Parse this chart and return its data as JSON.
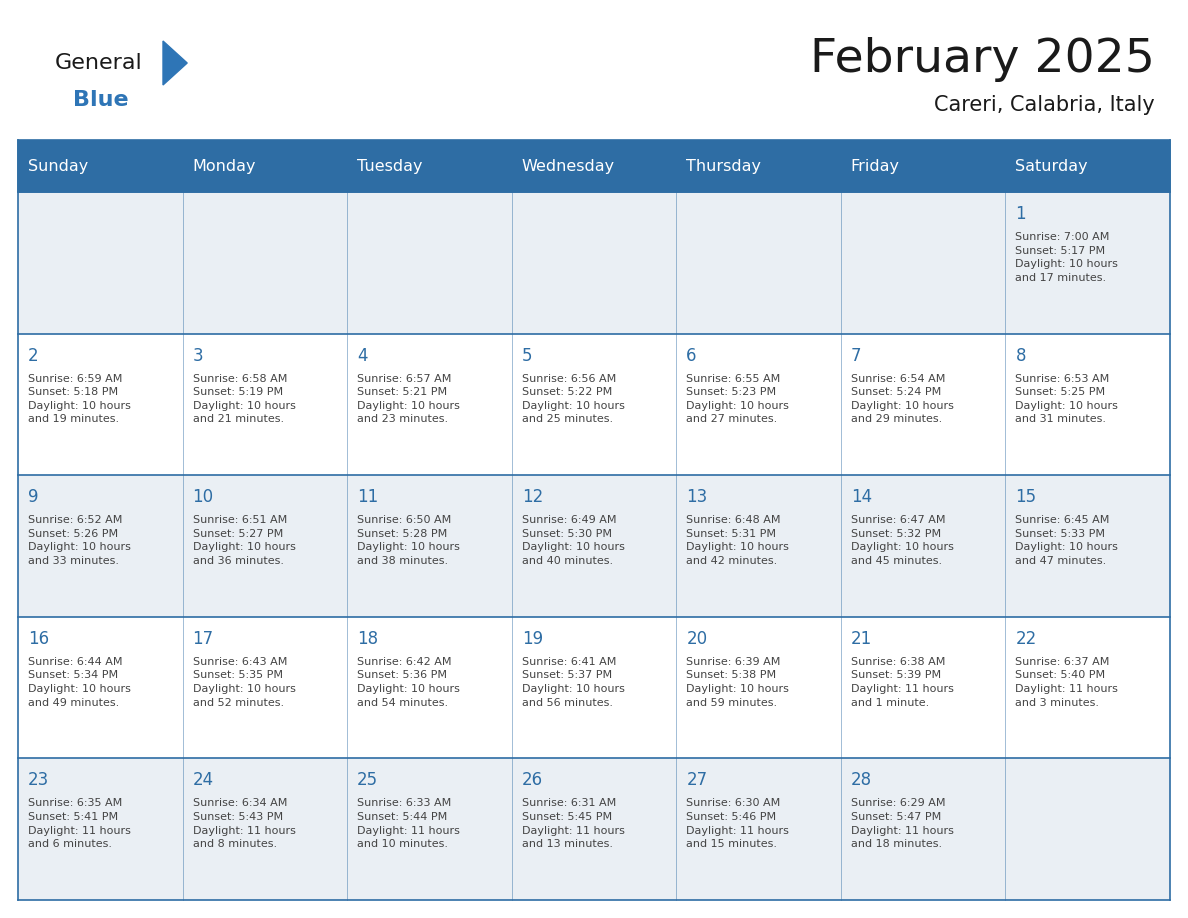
{
  "title": "February 2025",
  "subtitle": "Careri, Calabria, Italy",
  "days_of_week": [
    "Sunday",
    "Monday",
    "Tuesday",
    "Wednesday",
    "Thursday",
    "Friday",
    "Saturday"
  ],
  "header_bg": "#2E6DA4",
  "header_text": "#FFFFFF",
  "cell_bg_odd": "#EAEFF4",
  "cell_bg_even": "#FFFFFF",
  "border_color": "#2E6DA4",
  "day_number_color": "#2E6DA4",
  "cell_text_color": "#444444",
  "logo_color_general": "#1a1a1a",
  "logo_color_blue": "#2E75B6",
  "logo_triangle_color": "#2E75B6",
  "title_color": "#1a1a1a",
  "calendar_data": [
    [
      null,
      null,
      null,
      null,
      null,
      null,
      {
        "day": "1",
        "sunrise": "7:00 AM",
        "sunset": "5:17 PM",
        "daylight": "10 hours\nand 17 minutes."
      }
    ],
    [
      {
        "day": "2",
        "sunrise": "6:59 AM",
        "sunset": "5:18 PM",
        "daylight": "10 hours\nand 19 minutes."
      },
      {
        "day": "3",
        "sunrise": "6:58 AM",
        "sunset": "5:19 PM",
        "daylight": "10 hours\nand 21 minutes."
      },
      {
        "day": "4",
        "sunrise": "6:57 AM",
        "sunset": "5:21 PM",
        "daylight": "10 hours\nand 23 minutes."
      },
      {
        "day": "5",
        "sunrise": "6:56 AM",
        "sunset": "5:22 PM",
        "daylight": "10 hours\nand 25 minutes."
      },
      {
        "day": "6",
        "sunrise": "6:55 AM",
        "sunset": "5:23 PM",
        "daylight": "10 hours\nand 27 minutes."
      },
      {
        "day": "7",
        "sunrise": "6:54 AM",
        "sunset": "5:24 PM",
        "daylight": "10 hours\nand 29 minutes."
      },
      {
        "day": "8",
        "sunrise": "6:53 AM",
        "sunset": "5:25 PM",
        "daylight": "10 hours\nand 31 minutes."
      }
    ],
    [
      {
        "day": "9",
        "sunrise": "6:52 AM",
        "sunset": "5:26 PM",
        "daylight": "10 hours\nand 33 minutes."
      },
      {
        "day": "10",
        "sunrise": "6:51 AM",
        "sunset": "5:27 PM",
        "daylight": "10 hours\nand 36 minutes."
      },
      {
        "day": "11",
        "sunrise": "6:50 AM",
        "sunset": "5:28 PM",
        "daylight": "10 hours\nand 38 minutes."
      },
      {
        "day": "12",
        "sunrise": "6:49 AM",
        "sunset": "5:30 PM",
        "daylight": "10 hours\nand 40 minutes."
      },
      {
        "day": "13",
        "sunrise": "6:48 AM",
        "sunset": "5:31 PM",
        "daylight": "10 hours\nand 42 minutes."
      },
      {
        "day": "14",
        "sunrise": "6:47 AM",
        "sunset": "5:32 PM",
        "daylight": "10 hours\nand 45 minutes."
      },
      {
        "day": "15",
        "sunrise": "6:45 AM",
        "sunset": "5:33 PM",
        "daylight": "10 hours\nand 47 minutes."
      }
    ],
    [
      {
        "day": "16",
        "sunrise": "6:44 AM",
        "sunset": "5:34 PM",
        "daylight": "10 hours\nand 49 minutes."
      },
      {
        "day": "17",
        "sunrise": "6:43 AM",
        "sunset": "5:35 PM",
        "daylight": "10 hours\nand 52 minutes."
      },
      {
        "day": "18",
        "sunrise": "6:42 AM",
        "sunset": "5:36 PM",
        "daylight": "10 hours\nand 54 minutes."
      },
      {
        "day": "19",
        "sunrise": "6:41 AM",
        "sunset": "5:37 PM",
        "daylight": "10 hours\nand 56 minutes."
      },
      {
        "day": "20",
        "sunrise": "6:39 AM",
        "sunset": "5:38 PM",
        "daylight": "10 hours\nand 59 minutes."
      },
      {
        "day": "21",
        "sunrise": "6:38 AM",
        "sunset": "5:39 PM",
        "daylight": "11 hours\nand 1 minute."
      },
      {
        "day": "22",
        "sunrise": "6:37 AM",
        "sunset": "5:40 PM",
        "daylight": "11 hours\nand 3 minutes."
      }
    ],
    [
      {
        "day": "23",
        "sunrise": "6:35 AM",
        "sunset": "5:41 PM",
        "daylight": "11 hours\nand 6 minutes."
      },
      {
        "day": "24",
        "sunrise": "6:34 AM",
        "sunset": "5:43 PM",
        "daylight": "11 hours\nand 8 minutes."
      },
      {
        "day": "25",
        "sunrise": "6:33 AM",
        "sunset": "5:44 PM",
        "daylight": "11 hours\nand 10 minutes."
      },
      {
        "day": "26",
        "sunrise": "6:31 AM",
        "sunset": "5:45 PM",
        "daylight": "11 hours\nand 13 minutes."
      },
      {
        "day": "27",
        "sunrise": "6:30 AM",
        "sunset": "5:46 PM",
        "daylight": "11 hours\nand 15 minutes."
      },
      {
        "day": "28",
        "sunrise": "6:29 AM",
        "sunset": "5:47 PM",
        "daylight": "11 hours\nand 18 minutes."
      },
      null
    ]
  ]
}
